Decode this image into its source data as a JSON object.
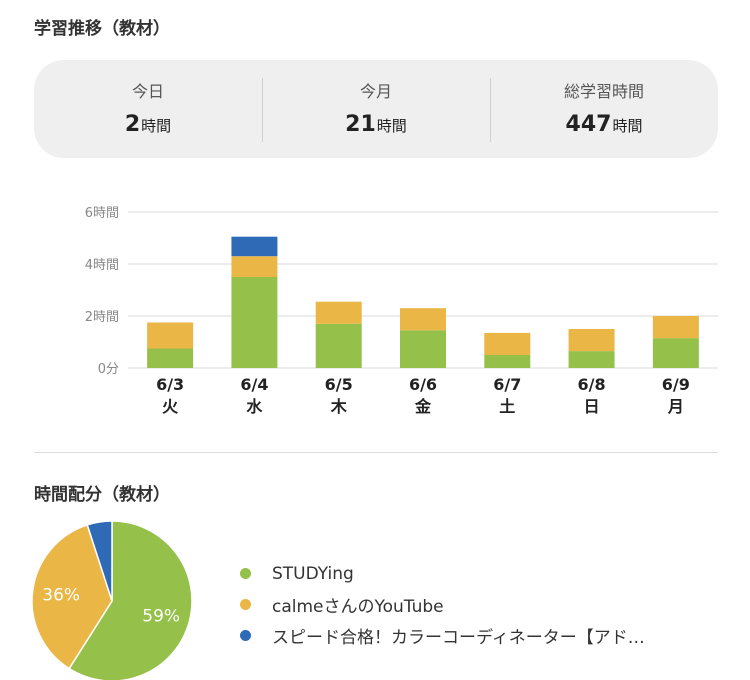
{
  "sections": {
    "trend_title": "学習推移（教材）",
    "distribution_title": "時間配分（教材）"
  },
  "summary": [
    {
      "label": "今日",
      "value": "2",
      "unit": "時間"
    },
    {
      "label": "今月",
      "value": "21",
      "unit": "時間"
    },
    {
      "label": "総学習時間",
      "value": "447",
      "unit": "時間"
    }
  ],
  "colors": {
    "studying": "#95c04a",
    "calme": "#eab645",
    "speed": "#2e6ab6",
    "grid": "#d9d9d9",
    "tick": "#888888"
  },
  "chart_data": [
    {
      "type": "bar",
      "stacked": true,
      "categories": [
        "6/3",
        "6/4",
        "6/5",
        "6/6",
        "6/7",
        "6/8",
        "6/9"
      ],
      "weekdays": [
        "火",
        "水",
        "木",
        "金",
        "土",
        "日",
        "月"
      ],
      "series": [
        {
          "key": "studying",
          "values": [
            0.75,
            3.5,
            1.7,
            1.45,
            0.5,
            0.65,
            1.15
          ]
        },
        {
          "key": "calme",
          "values": [
            1.0,
            0.8,
            0.85,
            0.85,
            0.85,
            0.85,
            0.85
          ]
        },
        {
          "key": "speed",
          "values": [
            0,
            0.75,
            0,
            0,
            0,
            0,
            0
          ]
        }
      ],
      "yticks": [
        "0分",
        "2時間",
        "4時間",
        "6時間"
      ],
      "ylim": [
        0,
        6
      ],
      "grid": true
    },
    {
      "type": "pie",
      "slices": [
        {
          "key": "studying",
          "name": "STUDYing",
          "value": 59,
          "label": "59%"
        },
        {
          "key": "calme",
          "name": "calmeさんのYouTube",
          "value": 36,
          "label": "36%"
        },
        {
          "key": "speed",
          "name": "スピード合格！カラーコーディネーター【アド…",
          "value": 5,
          "label": ""
        }
      ],
      "legend": "right"
    }
  ]
}
